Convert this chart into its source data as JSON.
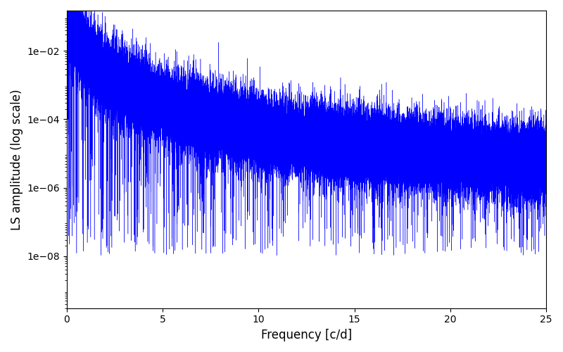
{
  "xlabel": "Frequency [c/d]",
  "ylabel": "LS amplitude (log scale)",
  "line_color": "#0000ff",
  "xlim": [
    0,
    25
  ],
  "ylim": [
    3e-10,
    0.15
  ],
  "ytick_values": [
    1e-08,
    1e-06,
    0.0001,
    0.01
  ],
  "xticks": [
    0,
    5,
    10,
    15,
    20,
    25
  ],
  "background_color": "#ffffff",
  "figsize": [
    8.0,
    5.0
  ],
  "dpi": 100,
  "seed": 42,
  "n_points": 50000,
  "freq_max": 25.0,
  "linewidth": 0.3
}
